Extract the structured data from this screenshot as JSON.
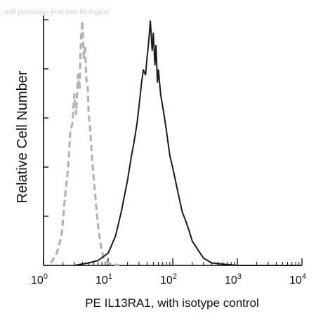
{
  "watermark": "with permission from Sino Biological",
  "chart_data": {
    "type": "line",
    "xscale": "log",
    "xlim": [
      1,
      10000
    ],
    "ylim": [
      0,
      100
    ],
    "grid": false,
    "legend": "none",
    "xlabel": "PE IL13RA1, with isotype control",
    "ylabel": "Relative Cell Number",
    "x_ticks": [
      {
        "base": "10",
        "exp": "0"
      },
      {
        "base": "10",
        "exp": "1"
      },
      {
        "base": "10",
        "exp": "2"
      },
      {
        "base": "10",
        "exp": "3"
      },
      {
        "base": "10",
        "exp": "4"
      }
    ],
    "colors": {
      "isotype": "#b4b4b4",
      "sample": "#1a1a1a",
      "axis": "#000000"
    },
    "series": [
      {
        "style": "dashed",
        "x": [
          1.3,
          1.6,
          1.9,
          2.1,
          2.4,
          2.6,
          2.8,
          3.0,
          3.2,
          3.4,
          3.6,
          3.8,
          4.0,
          4.2,
          4.4,
          4.6,
          4.8,
          5.0,
          5.3,
          5.6,
          6.0,
          6.5,
          7.0,
          7.5,
          8.0,
          8.5,
          9.0,
          10,
          12,
          15
        ],
        "values": [
          1,
          5,
          12,
          25,
          40,
          55,
          58,
          70,
          62,
          78,
          72,
          93,
          100,
          85,
          90,
          76,
          74,
          62,
          55,
          45,
          35,
          25,
          16,
          10,
          6,
          3,
          2,
          1,
          0.5,
          0
        ]
      },
      {
        "style": "solid",
        "x": [
          3,
          5,
          7,
          10,
          13,
          16,
          20,
          23,
          25,
          28,
          30,
          33,
          35,
          38,
          40,
          42,
          45,
          48,
          50,
          53,
          55,
          58,
          60,
          65,
          70,
          75,
          80,
          90,
          100,
          120,
          140,
          160,
          180,
          200,
          250,
          300,
          400,
          600,
          1000,
          10000
        ],
        "values": [
          0,
          1,
          2,
          5,
          12,
          22,
          35,
          45,
          50,
          58,
          65,
          75,
          80,
          78,
          85,
          90,
          100,
          88,
          95,
          82,
          90,
          75,
          80,
          70,
          65,
          60,
          55,
          45,
          40,
          30,
          22,
          18,
          14,
          10,
          6,
          3,
          1,
          0.5,
          0,
          0
        ]
      }
    ]
  }
}
